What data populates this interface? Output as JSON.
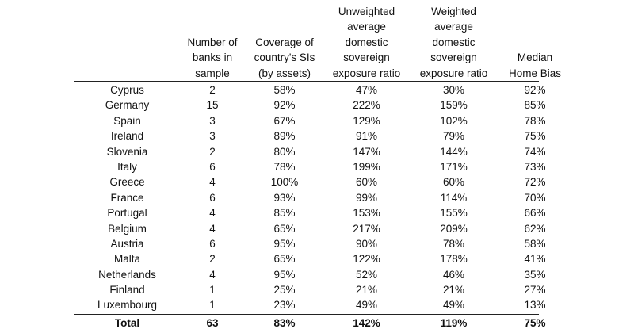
{
  "table": {
    "headers": [
      "",
      "Number of\nbanks in\nsample",
      "Coverage of\ncountry's SIs\n(by assets)",
      "Unweighted\naverage\ndomestic\nsovereign\nexposure ratio",
      "Weighted\naverage\ndomestic\nsovereign\nexposure ratio",
      "Median\nHome Bias"
    ],
    "rows": [
      [
        "Cyprus",
        "2",
        "58%",
        "47%",
        "30%",
        "92%"
      ],
      [
        "Germany",
        "15",
        "92%",
        "222%",
        "159%",
        "85%"
      ],
      [
        "Spain",
        "3",
        "67%",
        "129%",
        "102%",
        "78%"
      ],
      [
        "Ireland",
        "3",
        "89%",
        "91%",
        "79%",
        "75%"
      ],
      [
        "Slovenia",
        "2",
        "80%",
        "147%",
        "144%",
        "74%"
      ],
      [
        "Italy",
        "6",
        "78%",
        "199%",
        "171%",
        "73%"
      ],
      [
        "Greece",
        "4",
        "100%",
        "60%",
        "60%",
        "72%"
      ],
      [
        "France",
        "6",
        "93%",
        "99%",
        "114%",
        "70%"
      ],
      [
        "Portugal",
        "4",
        "85%",
        "153%",
        "155%",
        "66%"
      ],
      [
        "Belgium",
        "4",
        "65%",
        "217%",
        "209%",
        "62%"
      ],
      [
        "Austria",
        "6",
        "95%",
        "90%",
        "78%",
        "58%"
      ],
      [
        "Malta",
        "2",
        "65%",
        "122%",
        "178%",
        "41%"
      ],
      [
        "Netherlands",
        "4",
        "95%",
        "52%",
        "46%",
        "35%"
      ],
      [
        "Finland",
        "1",
        "25%",
        "21%",
        "21%",
        "27%"
      ],
      [
        "Luxembourg",
        "1",
        "23%",
        "49%",
        "49%",
        "13%"
      ]
    ],
    "total": [
      "Total",
      "63",
      "83%",
      "142%",
      "119%",
      "75%"
    ]
  }
}
